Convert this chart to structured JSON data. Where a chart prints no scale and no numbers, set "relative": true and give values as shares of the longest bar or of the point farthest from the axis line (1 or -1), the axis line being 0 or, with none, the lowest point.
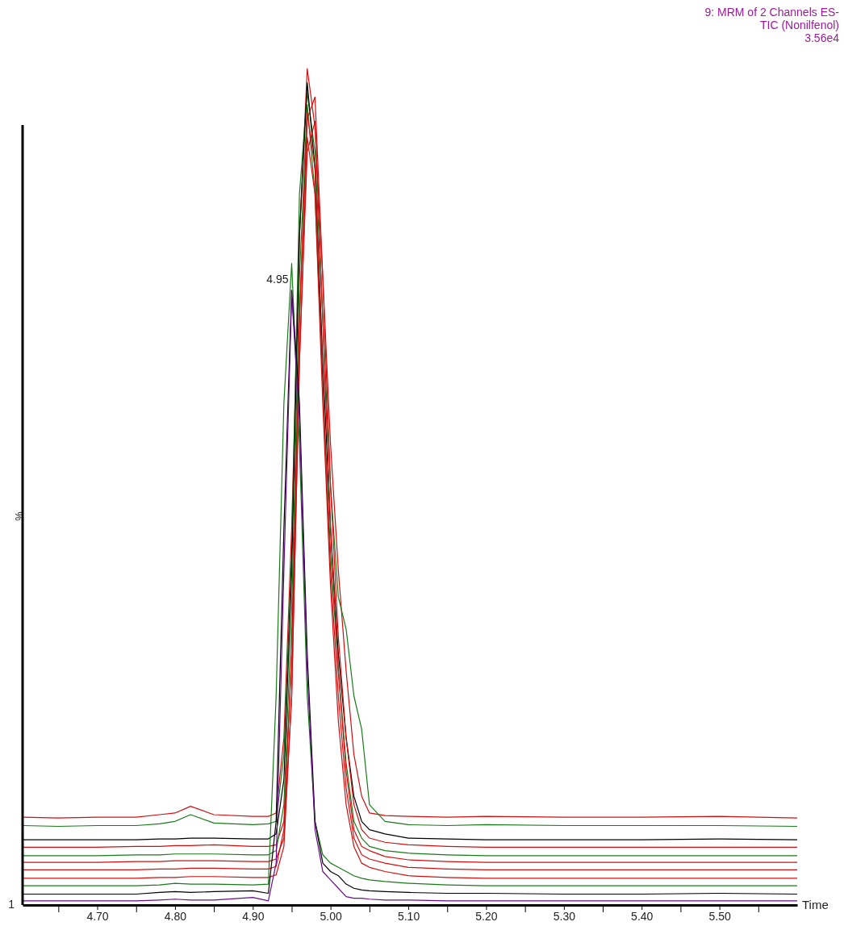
{
  "chart_data": {
    "type": "line",
    "title": "9: MRM of 2 Channels ES-\nTIC (Nonilfenol)",
    "subtitle": "3.56e4",
    "xlabel": "Time",
    "ylabel": "%",
    "relative": true,
    "xlim": [
      4.604,
      5.6
    ],
    "xticks": [
      {
        "value": 4.65,
        "label": null
      },
      {
        "value": 4.7,
        "label": "4.70"
      },
      {
        "value": 4.75,
        "label": null
      },
      {
        "value": 4.8,
        "label": "4.80"
      },
      {
        "value": 4.85,
        "label": null
      },
      {
        "value": 4.9,
        "label": "4.90"
      },
      {
        "value": 4.95,
        "label": null
      },
      {
        "value": 5.0,
        "label": "5.00"
      },
      {
        "value": 5.05,
        "label": null
      },
      {
        "value": 5.1,
        "label": "5.10"
      },
      {
        "value": 5.15,
        "label": null
      },
      {
        "value": 5.2,
        "label": "5.20"
      },
      {
        "value": 5.25,
        "label": null
      },
      {
        "value": 5.3,
        "label": "5.30"
      },
      {
        "value": 5.35,
        "label": null
      },
      {
        "value": 5.4,
        "label": "5.40"
      },
      {
        "value": 5.45,
        "label": null
      },
      {
        "value": 5.5,
        "label": "5.50"
      },
      {
        "value": 5.55,
        "label": null
      }
    ],
    "x": [
      4.604,
      4.65,
      4.7,
      4.75,
      4.78,
      4.8,
      4.82,
      4.85,
      4.9,
      4.92,
      4.93,
      4.94,
      4.95,
      4.96,
      4.97,
      4.98,
      4.99,
      5.0,
      5.01,
      5.02,
      5.03,
      5.04,
      5.05,
      5.07,
      5.1,
      5.15,
      5.2,
      5.3,
      5.4,
      5.5,
      5.6
    ],
    "annotations": [
      {
        "text": "4.95",
        "x": 4.95,
        "y": 0.74
      },
      "1"
    ],
    "series": [
      {
        "color": "#d01010",
        "values": [
          0.105,
          0.104,
          0.105,
          0.105,
          0.108,
          0.11,
          0.118,
          0.108,
          0.106,
          0.106,
          0.11,
          0.2,
          0.45,
          0.8,
          1.0,
          0.93,
          0.75,
          0.55,
          0.4,
          0.28,
          0.18,
          0.13,
          0.11,
          0.107,
          0.106,
          0.105,
          0.106,
          0.105,
          0.105,
          0.106,
          0.104
        ]
      },
      {
        "color": "#1a7a1a",
        "values": [
          0.095,
          0.094,
          0.095,
          0.095,
          0.097,
          0.1,
          0.108,
          0.098,
          0.096,
          0.097,
          0.1,
          0.18,
          0.42,
          0.85,
          0.971,
          0.9,
          0.7,
          0.5,
          0.368,
          0.33,
          0.25,
          0.21,
          0.12,
          0.1,
          0.096,
          0.095,
          0.096,
          0.095,
          0.095,
          0.095,
          0.094
        ]
      },
      {
        "color": "#000000",
        "values": [
          0.078,
          0.078,
          0.078,
          0.078,
          0.079,
          0.079,
          0.08,
          0.08,
          0.079,
          0.079,
          0.085,
          0.15,
          0.4,
          0.8,
          0.983,
          0.88,
          0.65,
          0.45,
          0.3,
          0.2,
          0.13,
          0.1,
          0.09,
          0.085,
          0.08,
          0.079,
          0.078,
          0.078,
          0.078,
          0.079,
          0.078
        ]
      },
      {
        "color": "#d01010",
        "values": [
          0.069,
          0.069,
          0.069,
          0.07,
          0.07,
          0.071,
          0.071,
          0.072,
          0.07,
          0.07,
          0.072,
          0.1,
          0.3,
          0.7,
          0.94,
          0.966,
          0.75,
          0.5,
          0.32,
          0.2,
          0.12,
          0.09,
          0.08,
          0.075,
          0.072,
          0.07,
          0.069,
          0.069,
          0.069,
          0.069,
          0.069
        ]
      },
      {
        "color": "#1a7a1a",
        "values": [
          0.059,
          0.059,
          0.059,
          0.06,
          0.06,
          0.061,
          0.061,
          0.061,
          0.06,
          0.06,
          0.065,
          0.12,
          0.35,
          0.75,
          0.957,
          0.85,
          0.62,
          0.42,
          0.28,
          0.17,
          0.1,
          0.08,
          0.07,
          0.065,
          0.062,
          0.06,
          0.059,
          0.059,
          0.059,
          0.059,
          0.059
        ]
      },
      {
        "color": "#d01010",
        "values": [
          0.051,
          0.051,
          0.051,
          0.052,
          0.052,
          0.053,
          0.053,
          0.053,
          0.052,
          0.052,
          0.055,
          0.08,
          0.25,
          0.65,
          0.9,
          0.937,
          0.7,
          0.45,
          0.28,
          0.16,
          0.09,
          0.07,
          0.065,
          0.058,
          0.054,
          0.052,
          0.051,
          0.051,
          0.051,
          0.051,
          0.051
        ]
      },
      {
        "color": "#d01010",
        "values": [
          0.042,
          0.042,
          0.042,
          0.042,
          0.043,
          0.043,
          0.044,
          0.044,
          0.043,
          0.043,
          0.046,
          0.09,
          0.3,
          0.7,
          0.947,
          0.88,
          0.62,
          0.4,
          0.25,
          0.14,
          0.08,
          0.06,
          0.055,
          0.05,
          0.045,
          0.043,
          0.042,
          0.042,
          0.042,
          0.042,
          0.042
        ]
      },
      {
        "color": "#d01010",
        "values": [
          0.032,
          0.032,
          0.032,
          0.032,
          0.033,
          0.033,
          0.034,
          0.034,
          0.033,
          0.033,
          0.036,
          0.07,
          0.25,
          0.65,
          0.918,
          0.85,
          0.6,
          0.38,
          0.22,
          0.12,
          0.07,
          0.05,
          0.045,
          0.04,
          0.035,
          0.033,
          0.032,
          0.032,
          0.032,
          0.032,
          0.032
        ]
      },
      {
        "color": "#1a7a1a",
        "values": [
          0.023,
          0.023,
          0.023,
          0.023,
          0.024,
          0.026,
          0.025,
          0.025,
          0.024,
          0.025,
          0.25,
          0.6,
          0.767,
          0.55,
          0.25,
          0.1,
          0.06,
          0.05,
          0.045,
          0.04,
          0.035,
          0.032,
          0.03,
          0.028,
          0.026,
          0.024,
          0.023,
          0.023,
          0.023,
          0.023,
          0.023
        ]
      },
      {
        "color": "#000000",
        "values": [
          0.013,
          0.013,
          0.013,
          0.013,
          0.015,
          0.016,
          0.015,
          0.016,
          0.017,
          0.014,
          0.1,
          0.45,
          0.735,
          0.6,
          0.3,
          0.1,
          0.05,
          0.04,
          0.035,
          0.025,
          0.02,
          0.018,
          0.017,
          0.016,
          0.015,
          0.014,
          0.014,
          0.013,
          0.013,
          0.014,
          0.013
        ]
      },
      {
        "color": "#6a0d8a",
        "values": [
          0.005,
          0.005,
          0.005,
          0.005,
          0.006,
          0.007,
          0.006,
          0.006,
          0.009,
          0.005,
          0.05,
          0.4,
          0.73,
          0.58,
          0.28,
          0.09,
          0.04,
          0.03,
          0.02,
          0.01,
          0.008,
          0.008,
          0.007,
          0.006,
          0.006,
          0.005,
          0.005,
          0.005,
          0.005,
          0.005,
          0.005
        ]
      }
    ]
  }
}
